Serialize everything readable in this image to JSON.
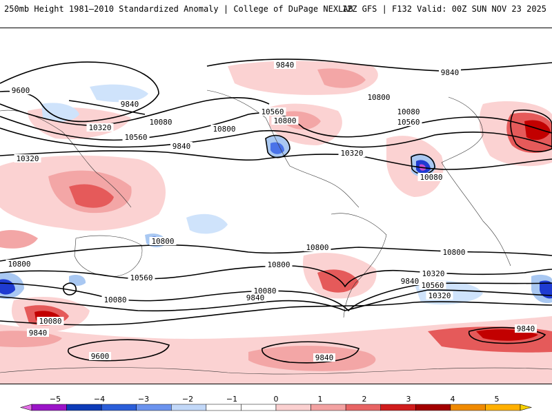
{
  "header": {
    "title_left": "250mb Height 1981–2010 Standardized Anomaly | College of DuPage NEXLAB",
    "title_right": "12Z GFS | F132 Valid: 00Z SUN NOV 23 2025"
  },
  "map": {
    "contour_labels": [
      "9840",
      "9840",
      "9600",
      "9840",
      "10080",
      "10320",
      "10560",
      "10800",
      "10800",
      "9840",
      "10320",
      "10560",
      "10080",
      "10800",
      "10560",
      "10320",
      "10080",
      "10800",
      "10800",
      "10800",
      "10800",
      "10800",
      "10560",
      "10320",
      "10080",
      "9840",
      "10560",
      "10320",
      "10080",
      "9840",
      "10080",
      "9840",
      "9600",
      "9840",
      "9840"
    ],
    "colors": {
      "neg_strong": "#1f3bd1",
      "neg_mid": "#4a73e8",
      "neg_light": "#a9c8f2",
      "neg_faint": "#cfe3fb",
      "pos_faint": "#fbd2d2",
      "pos_light": "#f3a6a6",
      "pos_mid": "#e55a5a",
      "pos_strong": "#c20000",
      "magenta": "#c44dd0",
      "contour": "#000000",
      "coast": "#333333"
    }
  },
  "colorbar": {
    "ticks": [
      "−5",
      "−4",
      "−3",
      "−2",
      "−1",
      "0",
      "1",
      "2",
      "3",
      "4",
      "5"
    ],
    "segments": [
      "#e36fe6",
      "#9b14c8",
      "#0d3bb8",
      "#2b5ed9",
      "#6b93ee",
      "#c2d8f8",
      "#ffffff",
      "#ffffff",
      "#fbd0d0",
      "#f3a2a2",
      "#e86464",
      "#d01c1c",
      "#a30000",
      "#f08a00",
      "#ffb000",
      "#f7d000"
    ]
  }
}
